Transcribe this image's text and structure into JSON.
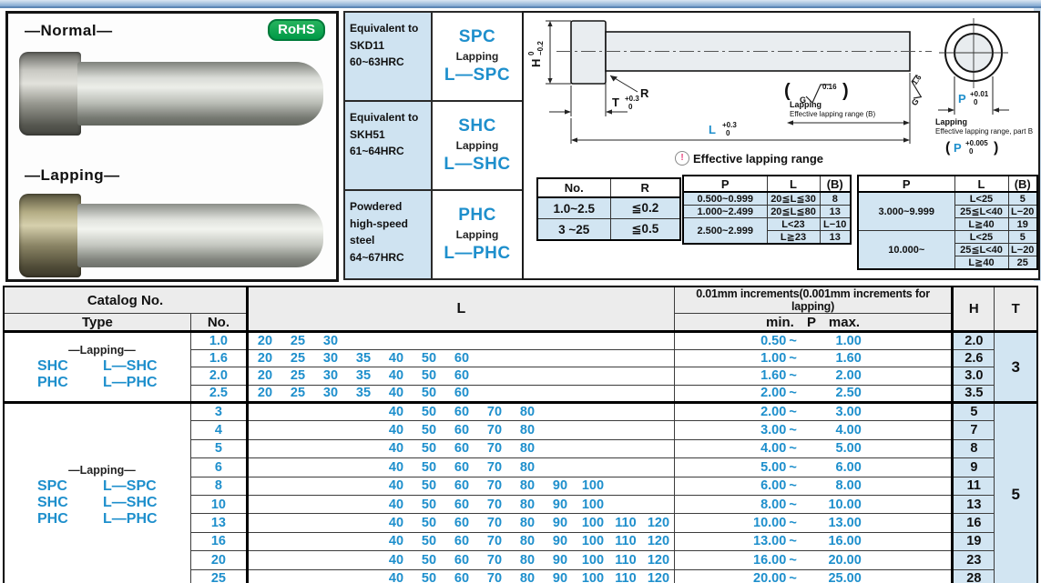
{
  "photos": {
    "normal_label": "—Normal—",
    "lapping_label": "—Lapping—",
    "rohs_label": "RoHS"
  },
  "materials": [
    {
      "spec": "Equivalent to\nSKD11\n60~63HRC",
      "grade": "SPC",
      "lapping_label": "Lapping",
      "lapping_grade": "L—SPC"
    },
    {
      "spec": "Equivalent to\nSKH51\n61~64HRC",
      "grade": "SHC",
      "lapping_label": "Lapping",
      "lapping_grade": "L—SHC"
    },
    {
      "spec": "Powdered\nhigh-speed\nsteel\n64~67HRC",
      "grade": "PHC",
      "lapping_label": "Lapping",
      "lapping_grade": "L—PHC"
    }
  ],
  "drawing": {
    "h_label": "H",
    "h_tol_upper": "0",
    "h_tol_lower": "−0.2",
    "t_label": "T",
    "t_tol_upper": "+0.3",
    "t_tol_lower": "0",
    "l_label": "L",
    "l_tol_upper": "+0.3",
    "l_tol_lower": "0",
    "r_label": "R",
    "finish_head_value": "0.16",
    "finish_head_letter": "G",
    "finish_side_value": "1.6",
    "finish_side_letter": "G",
    "lap_note1_line1": "Lapping",
    "lap_note1_line2": "Effective lapping range (B)",
    "p_label": "P",
    "p_tol_upper": "+0.01",
    "p_tol_lower": "0",
    "lap_note2_line1": "Lapping",
    "lap_note2_line2": "Effective lapping range, part B",
    "p2_open": "(",
    "p2_label": "P",
    "p2_tol_upper": "+0.005",
    "p2_tol_lower": "0",
    "p2_close": ")"
  },
  "r_table": {
    "headers": [
      "No.",
      "R"
    ],
    "rows": [
      [
        "1.0~2.5",
        "≦0.2"
      ],
      [
        "3 ~25",
        "≦0.5"
      ]
    ]
  },
  "elr": {
    "title": "Effective lapping range",
    "headers": [
      "P",
      "L",
      "(B)"
    ],
    "table1": [
      {
        "p": "0.500~0.999",
        "span": 1,
        "cells": [
          [
            "20≦L≦30",
            "8"
          ]
        ]
      },
      {
        "p": "1.000~2.499",
        "span": 1,
        "cells": [
          [
            "20≦L≦80",
            "13"
          ]
        ]
      },
      {
        "p": "2.500~2.999",
        "span": 2,
        "cells": [
          [
            "L<23",
            "L−10"
          ],
          [
            "L≧23",
            "13"
          ]
        ]
      }
    ],
    "table2": [
      {
        "p": "3.000~9.999",
        "span": 3,
        "cells": [
          [
            "L<25",
            "5"
          ],
          [
            "25≦L<40",
            "L−20"
          ],
          [
            "L≧40",
            "19"
          ]
        ]
      },
      {
        "p": "10.000~",
        "span": 3,
        "cells": [
          [
            "L<25",
            "5"
          ],
          [
            "25≦L<40",
            "L−20"
          ],
          [
            "L≧40",
            "25"
          ]
        ]
      }
    ]
  },
  "catalog": {
    "header": {
      "catalog_no": "Catalog No.",
      "type": "Type",
      "no": "No.",
      "l": "L",
      "p_increment": "0.01mm increments(0.001mm increments for lapping)",
      "p_minmax": "min. P max.",
      "h": "H",
      "t": "T"
    },
    "l_slots": [
      "20",
      "25",
      "30",
      "35",
      "40",
      "50",
      "60",
      "70",
      "80",
      "90",
      "100",
      "110",
      "120"
    ],
    "groups": [
      {
        "lapping_label": "—Lapping—",
        "types": [
          [
            "SHC",
            "L—SHC"
          ],
          [
            "PHC",
            "L—PHC"
          ]
        ],
        "t": "3",
        "rows": [
          {
            "no": "1.0",
            "l": [
              "20",
              "25",
              "30"
            ],
            "p_min": "0.50",
            "p_max": "1.00",
            "h": "2.0"
          },
          {
            "no": "1.6",
            "l": [
              "20",
              "25",
              "30",
              "35",
              "40",
              "50",
              "60"
            ],
            "p_min": "1.00",
            "p_max": "1.60",
            "h": "2.6"
          },
          {
            "no": "2.0",
            "l": [
              "20",
              "25",
              "30",
              "35",
              "40",
              "50",
              "60"
            ],
            "p_min": "1.60",
            "p_max": "2.00",
            "h": "3.0"
          },
          {
            "no": "2.5",
            "l": [
              "20",
              "25",
              "30",
              "35",
              "40",
              "50",
              "60"
            ],
            "p_min": "2.00",
            "p_max": "2.50",
            "h": "3.5"
          }
        ]
      },
      {
        "lapping_label": "—Lapping—",
        "types": [
          [
            "SPC",
            "L—SPC"
          ],
          [
            "SHC",
            "L—SHC"
          ],
          [
            "PHC",
            "L—PHC"
          ]
        ],
        "t": "5",
        "rows": [
          {
            "no": "3",
            "l": [
              "40",
              "50",
              "60",
              "70",
              "80"
            ],
            "p_min": "2.00",
            "p_max": "3.00",
            "h": "5"
          },
          {
            "no": "4",
            "l": [
              "40",
              "50",
              "60",
              "70",
              "80"
            ],
            "p_min": "3.00",
            "p_max": "4.00",
            "h": "7"
          },
          {
            "no": "5",
            "l": [
              "40",
              "50",
              "60",
              "70",
              "80"
            ],
            "p_min": "4.00",
            "p_max": "5.00",
            "h": "8"
          },
          {
            "no": "6",
            "l": [
              "40",
              "50",
              "60",
              "70",
              "80"
            ],
            "p_min": "5.00",
            "p_max": "6.00",
            "h": "9"
          },
          {
            "no": "8",
            "l": [
              "40",
              "50",
              "60",
              "70",
              "80",
              "90",
              "100"
            ],
            "p_min": "6.00",
            "p_max": "8.00",
            "h": "11"
          },
          {
            "no": "10",
            "l": [
              "40",
              "50",
              "60",
              "70",
              "80",
              "90",
              "100"
            ],
            "p_min": "8.00",
            "p_max": "10.00",
            "h": "13"
          },
          {
            "no": "13",
            "l": [
              "40",
              "50",
              "60",
              "70",
              "80",
              "90",
              "100",
              "110",
              "120"
            ],
            "p_min": "10.00",
            "p_max": "13.00",
            "h": "16"
          },
          {
            "no": "16",
            "l": [
              "40",
              "50",
              "60",
              "70",
              "80",
              "90",
              "100",
              "110",
              "120"
            ],
            "p_min": "13.00",
            "p_max": "16.00",
            "h": "19"
          },
          {
            "no": "20",
            "l": [
              "40",
              "50",
              "60",
              "70",
              "80",
              "90",
              "100",
              "110",
              "120"
            ],
            "p_min": "16.00",
            "p_max": "20.00",
            "h": "23"
          },
          {
            "no": "25",
            "l": [
              "40",
              "50",
              "60",
              "70",
              "80",
              "90",
              "100",
              "110",
              "120"
            ],
            "p_min": "20.00",
            "p_max": "25.00",
            "h": "28"
          }
        ]
      }
    ]
  },
  "colors": {
    "accent_blue": "#1e8fcc",
    "cell_blue": "#d2e5f2",
    "header_gray": "#ececec",
    "rohs_green": "#009a47"
  }
}
